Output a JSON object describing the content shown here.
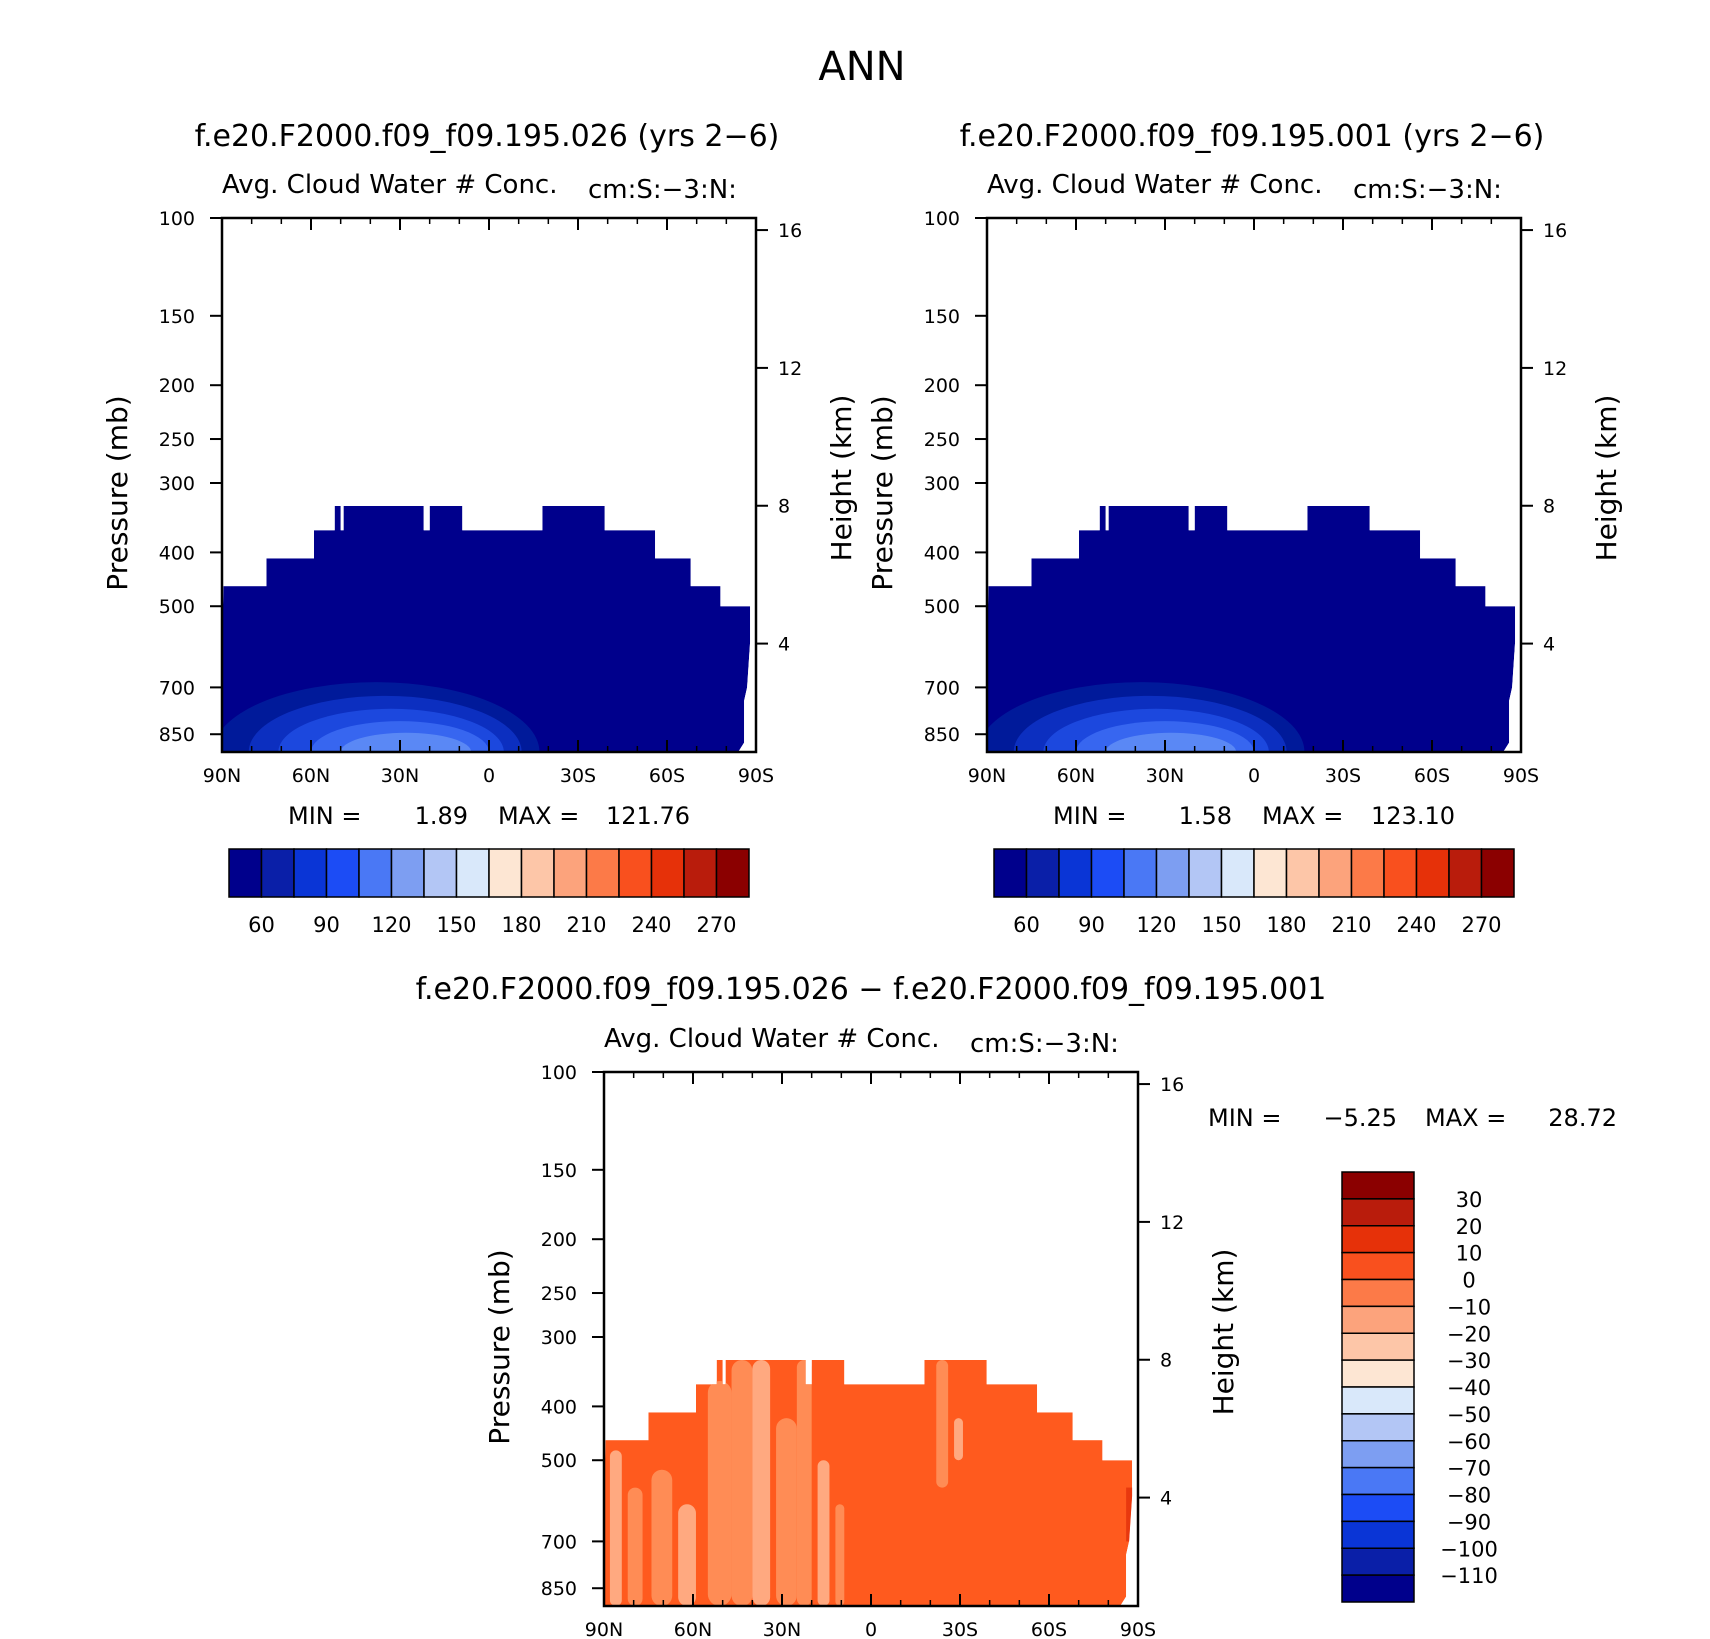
{
  "figure": {
    "title": "ANN",
    "colors": {
      "abs_fill": "#00008c",
      "abs_levels": [
        "#001a9a",
        "#0c2fc0",
        "#1c48de",
        "#3766f0",
        "#5a88f5"
      ],
      "diff_base": "#ff5a1e",
      "diff_light": "#ff8c55",
      "diff_lighter": "#ffa980",
      "diff_dark": "#e8380e"
    }
  },
  "chart_data": [
    {
      "type": "heatmap",
      "panel": "top-left",
      "title": "f.e20.F2000.f09_f09.195.026 (yrs 2−6)",
      "subtitle": "Avg. Cloud Water # Conc.",
      "units": "cm:S:−3:N:",
      "xlabel": "",
      "ylabel": "Pressure (mb)",
      "y2label": "Height (km)",
      "x_ticks": [
        "90N",
        "60N",
        "30N",
        "0",
        "30S",
        "60S",
        "90S"
      ],
      "y_ticks": [
        100,
        150,
        200,
        250,
        300,
        400,
        500,
        700,
        850
      ],
      "y2_ticks": [
        16,
        12,
        8,
        4
      ],
      "min_label": "MIN =",
      "min_value": "1.89",
      "max_label": "MAX =",
      "max_value": "121.76",
      "colorbar_ticks": [
        60,
        90,
        120,
        150,
        180,
        210,
        240,
        270
      ],
      "colorbar_colors": [
        "#00008c",
        "#0a1fa8",
        "#0a35d6",
        "#1c4cf5",
        "#4a78f5",
        "#7d9ef2",
        "#b3c6f5",
        "#d9e8fa",
        "#fde6d3",
        "#fdc6a8",
        "#fca37c",
        "#fc7a48",
        "#f9501e",
        "#e63109",
        "#b91c0c",
        "#8b0000"
      ]
    },
    {
      "type": "heatmap",
      "panel": "top-right",
      "title": "f.e20.F2000.f09_f09.195.001 (yrs 2−6)",
      "subtitle": "Avg. Cloud Water # Conc.",
      "units": "cm:S:−3:N:",
      "xlabel": "",
      "ylabel": "Pressure (mb)",
      "y2label": "Height (km)",
      "x_ticks": [
        "90N",
        "60N",
        "30N",
        "0",
        "30S",
        "60S",
        "90S"
      ],
      "y_ticks": [
        100,
        150,
        200,
        250,
        300,
        400,
        500,
        700,
        850
      ],
      "y2_ticks": [
        16,
        12,
        8,
        4
      ],
      "min_label": "MIN =",
      "min_value": "1.58",
      "max_label": "MAX =",
      "max_value": "123.10",
      "colorbar_ticks": [
        60,
        90,
        120,
        150,
        180,
        210,
        240,
        270
      ],
      "colorbar_colors": [
        "#00008c",
        "#0a1fa8",
        "#0a35d6",
        "#1c4cf5",
        "#4a78f5",
        "#7d9ef2",
        "#b3c6f5",
        "#d9e8fa",
        "#fde6d3",
        "#fdc6a8",
        "#fca37c",
        "#fc7a48",
        "#f9501e",
        "#e63109",
        "#b91c0c",
        "#8b0000"
      ]
    },
    {
      "type": "heatmap",
      "panel": "bottom",
      "title": "f.e20.F2000.f09_f09.195.026 − f.e20.F2000.f09_f09.195.001",
      "subtitle": "Avg. Cloud Water # Conc.",
      "units": "cm:S:−3:N:",
      "xlabel": "",
      "ylabel": "Pressure (mb)",
      "y2label": "Height (km)",
      "x_ticks": [
        "90N",
        "60N",
        "30N",
        "0",
        "30S",
        "60S",
        "90S"
      ],
      "y_ticks": [
        100,
        150,
        200,
        250,
        300,
        400,
        500,
        700,
        850
      ],
      "y2_ticks": [
        16,
        12,
        8,
        4
      ],
      "min_label": "MIN =",
      "min_value": "−5.25",
      "max_label": "MAX =",
      "max_value": "28.72",
      "colorbar_ticks": [
        30,
        20,
        10,
        0,
        -10,
        -20,
        -30,
        -40,
        -50,
        -60,
        -70,
        -80,
        -90,
        -100,
        -110
      ],
      "colorbar_colors": [
        "#8b0000",
        "#b91c0c",
        "#e63109",
        "#f9501e",
        "#fc7a48",
        "#fca37c",
        "#fdc6a8",
        "#fde6d3",
        "#d9e8fa",
        "#b3c6f5",
        "#7d9ef2",
        "#4a78f5",
        "#1c4cf5",
        "#0a35d6",
        "#0a1fa8",
        "#00008c"
      ]
    }
  ]
}
